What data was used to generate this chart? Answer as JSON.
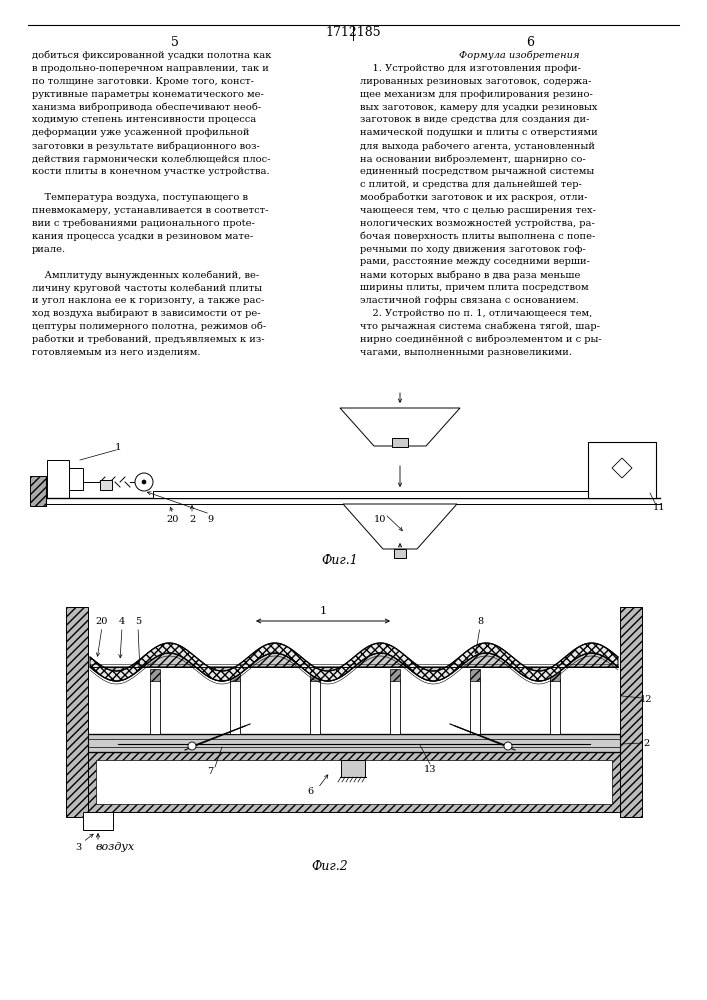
{
  "page_number": "1712185",
  "left_col_number": "5",
  "right_col_number": "6",
  "left_text_lines": [
    "добиться фиксированной усадки полотна как",
    "в продольно-поперечном направлении, так и",
    "по толщине заготовки. Кроме того, конст-",
    "руктивные параметры конематического ме-",
    "ханизма вибропривода обеспечивают необ-",
    "ходимую степень интенсивности процесса",
    "деформации уже усаженной профильной",
    "заготовки в результате вибрационного воз-",
    "действия гармонически колеблющейся плос-",
    "кости плиты в конечном участке устройства.",
    "",
    "    Температура воздуха, поступающего в",
    "пневмокамеру, устанавливается в соответст-",
    "вии с требованиями рационального прote-",
    "кания процесса усадки в резиновом мате-",
    "риале.",
    "",
    "    Амплитуду вынужденных колебаний, ве-",
    "личину круговой частоты колебаний плиты",
    "и угол наклона ее к горизонту, а также рас-",
    "ход воздуха выбирают в зависимости от ре-",
    "цептуры полимерного полотна, режимов об-",
    "работки и требований, предъявляемых к из-",
    "готовляемым из него изделиям."
  ],
  "right_text_title": "Формула изобретения",
  "right_text_lines": [
    "    1. Устройство для изготовления профи-",
    "лированных резиновых заготовок, содержа-",
    "щее механизм для профилирования резино-",
    "вых заготовок, камеру для усадки резиновых",
    "заготовок в виде средства для создания ди-",
    "намической подушки и плиты с отверстиями",
    "для выхода рабочего агента, установленный",
    "на основании виброэлемент, шарнирно со-",
    "единенный посредством рычажной системы",
    "с плитой, и средства для дальнейшей тер-",
    "мообработки заготовок и их раскроя, отли-",
    "чающееся тем, что с целью расширения тех-",
    "нологических возможностей устройства, ра-",
    "бочая поверхность плиты выполнена с попе-",
    "речными по ходу движения заготовок гоф-",
    "рами, расстояние между соседними верши-",
    "нами которых выбрано в два раза меньше",
    "ширины плиты, причем плита посредством",
    "эластичной гофры связана с основанием.",
    "    2. Устройство по п. 1, отличающееся тем,",
    "что рычажная система снабжена тягой, шар-",
    "нирно соединённой с виброэлементом и с ры-",
    "чагами, выполненными разновеликими."
  ],
  "fig1_caption": "Фиг.1",
  "fig2_caption": "Фиг.2",
  "bg": "#ffffff",
  "fg": "#000000"
}
